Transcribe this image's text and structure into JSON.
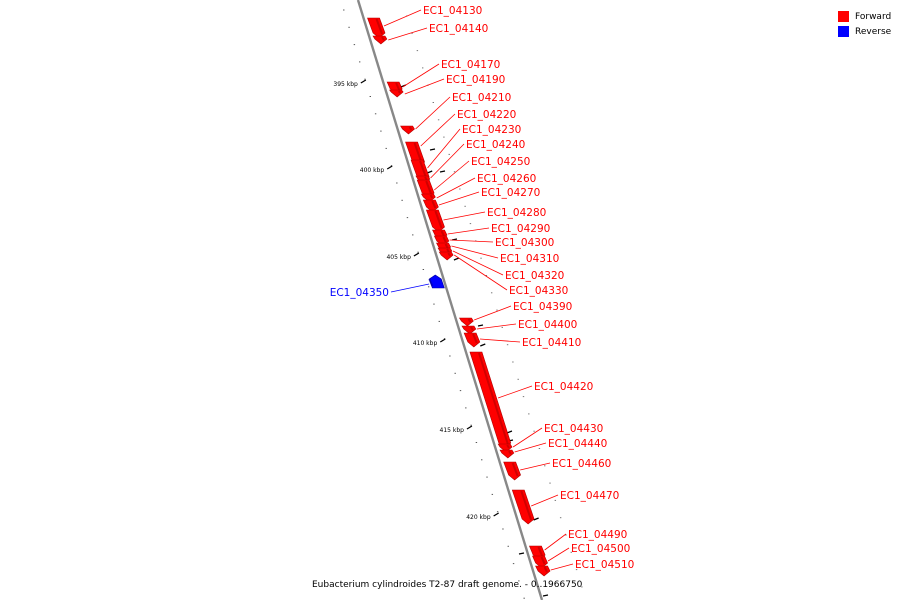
{
  "legend": {
    "forward_label": "Forward",
    "reverse_label": "Reverse",
    "forward_color": "#ff0000",
    "reverse_color": "#0000ff"
  },
  "caption": "Eubacterium cylindroides T2-87 draft genome. - 0..1966750",
  "ticks": [
    "395 kbp",
    "400 kbp",
    "405 kbp",
    "410 kbp",
    "415 kbp",
    "420 kbp"
  ],
  "genes": [
    {
      "name": "EC1_04130",
      "strand": "forward"
    },
    {
      "name": "EC1_04140",
      "strand": "forward"
    },
    {
      "name": "EC1_04170",
      "strand": "forward"
    },
    {
      "name": "EC1_04190",
      "strand": "forward"
    },
    {
      "name": "EC1_04210",
      "strand": "forward"
    },
    {
      "name": "EC1_04220",
      "strand": "forward"
    },
    {
      "name": "EC1_04230",
      "strand": "forward"
    },
    {
      "name": "EC1_04240",
      "strand": "forward"
    },
    {
      "name": "EC1_04250",
      "strand": "forward"
    },
    {
      "name": "EC1_04260",
      "strand": "forward"
    },
    {
      "name": "EC1_04270",
      "strand": "forward"
    },
    {
      "name": "EC1_04280",
      "strand": "forward"
    },
    {
      "name": "EC1_04290",
      "strand": "forward"
    },
    {
      "name": "EC1_04300",
      "strand": "forward"
    },
    {
      "name": "EC1_04310",
      "strand": "forward"
    },
    {
      "name": "EC1_04320",
      "strand": "forward"
    },
    {
      "name": "EC1_04330",
      "strand": "forward"
    },
    {
      "name": "EC1_04350",
      "strand": "reverse"
    },
    {
      "name": "EC1_04390",
      "strand": "forward"
    },
    {
      "name": "EC1_04400",
      "strand": "forward"
    },
    {
      "name": "EC1_04410",
      "strand": "forward"
    },
    {
      "name": "EC1_04420",
      "strand": "forward"
    },
    {
      "name": "EC1_04430",
      "strand": "forward"
    },
    {
      "name": "EC1_04440",
      "strand": "forward"
    },
    {
      "name": "EC1_04460",
      "strand": "forward"
    },
    {
      "name": "EC1_04470",
      "strand": "forward"
    },
    {
      "name": "EC1_04490",
      "strand": "forward"
    },
    {
      "name": "EC1_04500",
      "strand": "forward"
    },
    {
      "name": "EC1_04510",
      "strand": "forward"
    }
  ]
}
